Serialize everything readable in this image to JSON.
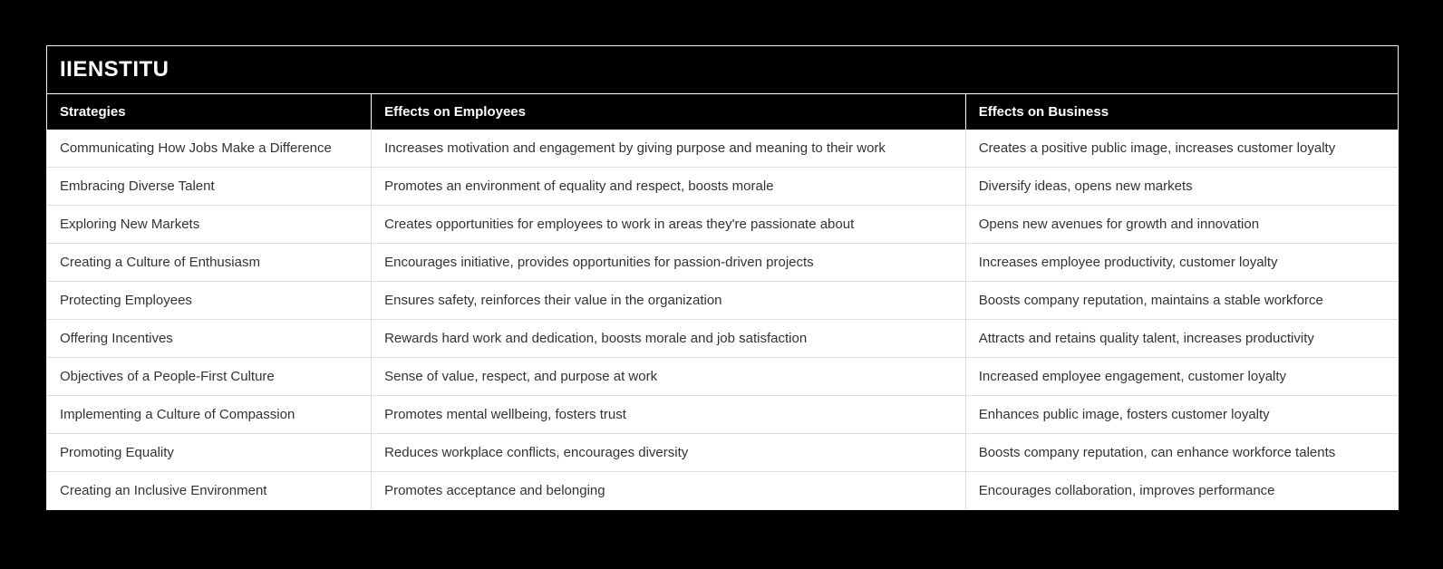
{
  "page": {
    "background": "#000000"
  },
  "header": {
    "title": "IIENSTITU"
  },
  "colors": {
    "page_bg": "#000000",
    "title_bar_bg": "#000000",
    "title_text": "#ffffff",
    "header_row_bg": "#000000",
    "header_row_text": "#ffffff",
    "row_bg": "#ffffff",
    "body_text": "#333333",
    "row_divider": "#dddddd",
    "outer_border": "#f2f2f2",
    "header_divider": "#ffffff"
  },
  "chart_data": {
    "type": "table",
    "title": "IIENSTITU",
    "columns": [
      "Strategies",
      "Effects on Employees",
      "Effects on Business"
    ],
    "rows": [
      [
        "Communicating How Jobs Make a Difference",
        "Increases motivation and engagement by giving purpose and meaning to their work",
        "Creates a positive public image, increases customer loyalty"
      ],
      [
        "Embracing Diverse Talent",
        "Promotes an environment of equality and respect, boosts morale",
        "Diversify ideas, opens new markets"
      ],
      [
        "Exploring New Markets",
        "Creates opportunities for employees to work in areas they're passionate about",
        "Opens new avenues for growth and innovation"
      ],
      [
        "Creating a Culture of Enthusiasm",
        "Encourages initiative, provides opportunities for passion-driven projects",
        "Increases employee productivity, customer loyalty"
      ],
      [
        "Protecting Employees",
        "Ensures safety, reinforces their value in the organization",
        "Boosts company reputation, maintains a stable workforce"
      ],
      [
        "Offering Incentives",
        "Rewards hard work and dedication, boosts morale and job satisfaction",
        "Attracts and retains quality talent, increases productivity"
      ],
      [
        "Objectives of a People-First Culture",
        "Sense of value, respect, and purpose at work",
        "Increased employee engagement, customer loyalty"
      ],
      [
        "Implementing a Culture of Compassion",
        "Promotes mental wellbeing, fosters trust",
        "Enhances public image, fosters customer loyalty"
      ],
      [
        "Promoting Equality",
        "Reduces workplace conflicts, encourages diversity",
        "Boosts company reputation, can enhance workforce talents"
      ],
      [
        "Creating an Inclusive Environment",
        "Promotes acceptance and belonging",
        "Encourages collaboration, improves performance"
      ]
    ],
    "layout": {
      "column_widths_pct": [
        24,
        44,
        32
      ],
      "header_style": "black background, white bold text",
      "row_style": "white rows, light gray dividers, no alternating shading",
      "grid": "horizontal and vertical light gray lines between body cells"
    }
  }
}
